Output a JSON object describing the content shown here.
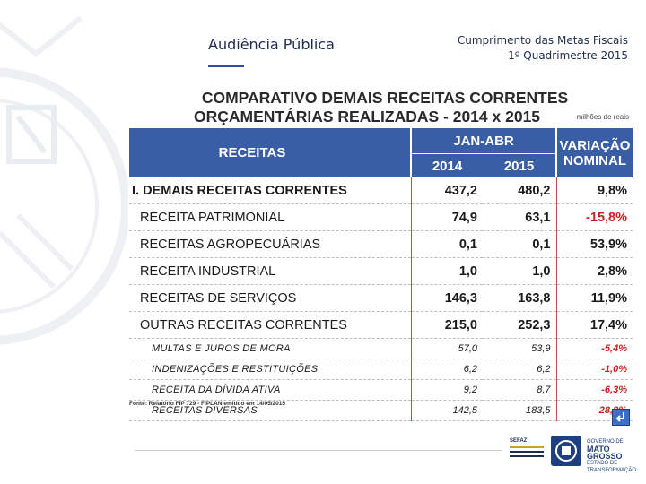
{
  "header": {
    "left_title": "Audiência Pública",
    "right_line1": "Cumprimento das Metas Fiscais",
    "right_line2": "1º Quadrimestre 2015"
  },
  "slide": {
    "title_line1": "COMPARATIVO DEMAIS RECEITAS CORRENTES",
    "title_line2": "ORÇAMENTÁRIAS REALIZADAS - 2014 x 2015",
    "unit": "milhões de reais",
    "source": "Fonte: Relatório FIP 729 - FIPLAN emitido em 14/05/2015"
  },
  "table": {
    "col_receitas": "RECEITAS",
    "col_period": "JAN-ABR",
    "col_2014": "2014",
    "col_2015": "2015",
    "col_variation": "VARIAÇÃO NOMINAL",
    "rows": [
      {
        "label": "I. DEMAIS RECEITAS CORRENTES",
        "v2014": "437,2",
        "v2015": "480,2",
        "var": "9,8%"
      },
      {
        "label": "RECEITA PATRIMONIAL",
        "v2014": "74,9",
        "v2015": "63,1",
        "var": "-15,8%"
      },
      {
        "label": "RECEITAS AGROPECUÁRIAS",
        "v2014": "0,1",
        "v2015": "0,1",
        "var": "53,9%"
      },
      {
        "label": "RECEITA INDUSTRIAL",
        "v2014": "1,0",
        "v2015": "1,0",
        "var": "2,8%"
      },
      {
        "label": "RECEITAS DE SERVIÇOS",
        "v2014": "146,3",
        "v2015": "163,8",
        "var": "11,9%"
      },
      {
        "label": "OUTRAS RECEITAS CORRENTES",
        "v2014": "215,0",
        "v2015": "252,3",
        "var": "17,4%"
      },
      {
        "label": "MULTAS E JUROS DE MORA",
        "v2014": "57,0",
        "v2015": "53,9",
        "var": "-5,4%"
      },
      {
        "label": "INDENIZAÇÕES E RESTITUIÇÕES",
        "v2014": "6,2",
        "v2015": "6,2",
        "var": "-1,0%"
      },
      {
        "label": "RECEITA DA DÍVIDA ATIVA",
        "v2014": "9,2",
        "v2015": "8,7",
        "var": "-6,3%"
      },
      {
        "label": "RECEITAS DIVERSAS",
        "v2014": "142,5",
        "v2015": "183,5",
        "var": "28,8%"
      }
    ]
  },
  "footer": {
    "sefaz": "SEFAZ",
    "gov_small": "GOVERNO DE",
    "gov_name": "MATO GROSSO",
    "gov_sub": "ESTADO DE TRANSFORMAÇÃO"
  },
  "colors": {
    "header_fill": "#3a5ea6",
    "negative": "#cc1f1f",
    "brand_navy": "#1f2b4d"
  },
  "icons": [
    "watermark-seal-icon",
    "return-icon",
    "sefaz-logo-icon",
    "state-seal-icon"
  ]
}
